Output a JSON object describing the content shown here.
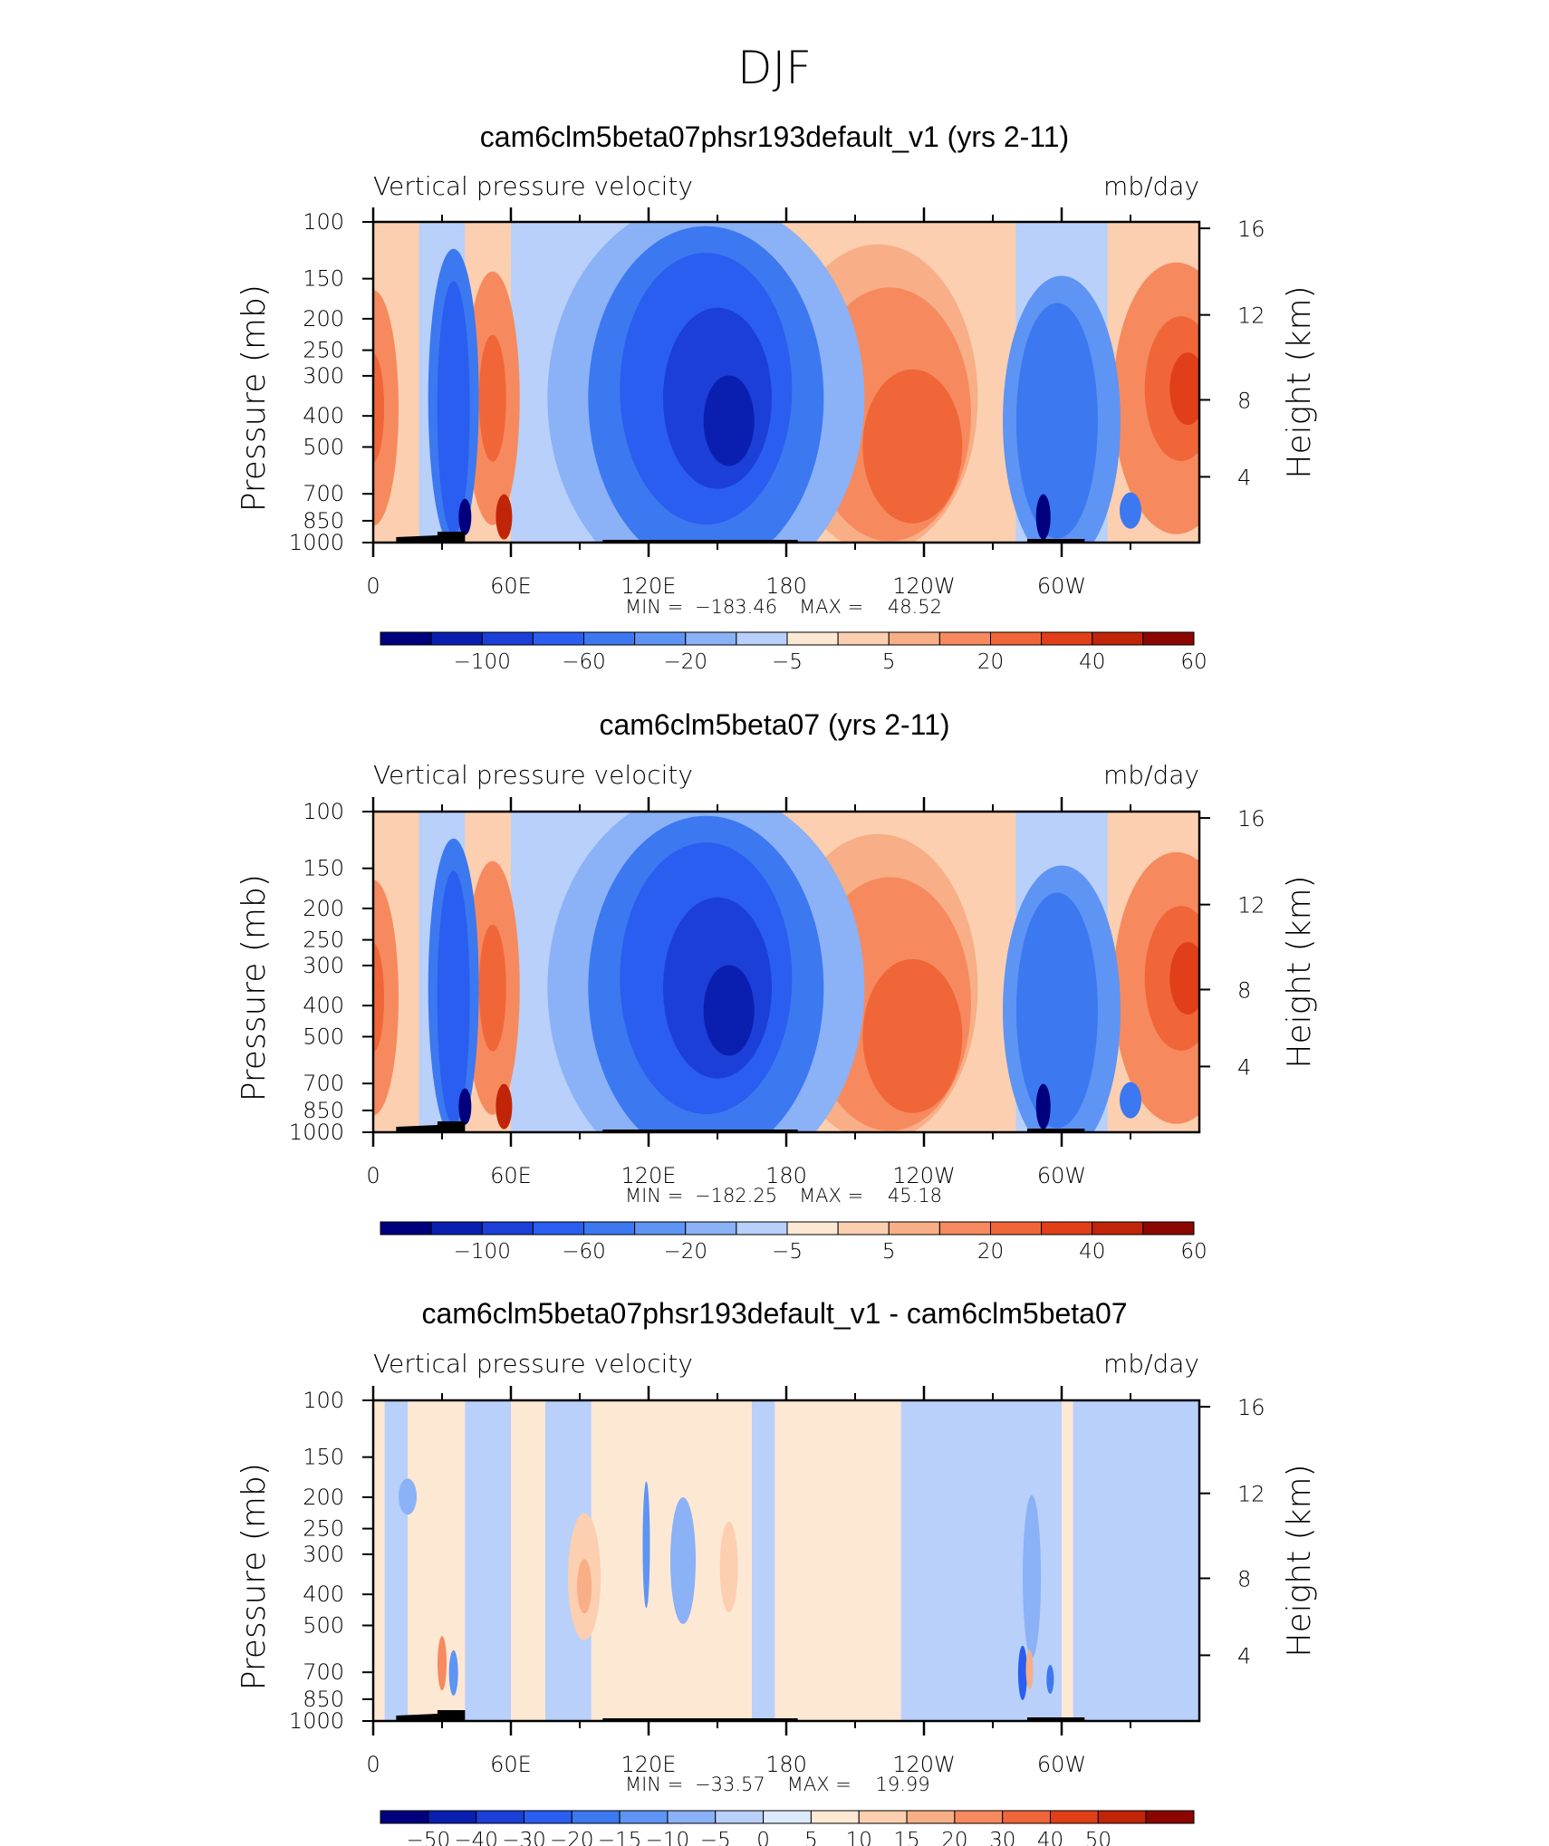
{
  "figure_title": "DJF",
  "chart_data": [
    {
      "type": "heatmap",
      "title": "cam6clm5beta07phsr193default_v1 (yrs 2-11)",
      "subtitle_left": "Vertical pressure velocity",
      "subtitle_right": "mb/day",
      "ylabel": "Pressure (mb)",
      "y2label": "Height (km)",
      "x_ticks": [
        "0",
        "60E",
        "120E",
        "180",
        "120W",
        "60W"
      ],
      "y_ticks": [
        "100",
        "150",
        "200",
        "250",
        "300",
        "400",
        "500",
        "700",
        "850",
        "1000"
      ],
      "y2_ticks": [
        "16",
        "12",
        "8",
        "4"
      ],
      "min_label": "MIN",
      "max_label": "MAX",
      "min": "−183.46",
      "max": "48.52",
      "colorbar_labels": [
        "−100",
        "−60",
        "−20",
        "−5",
        "5",
        "20",
        "40",
        "60"
      ],
      "levels": [
        -120,
        -100,
        -80,
        -60,
        -40,
        -20,
        -10,
        -5,
        0,
        5,
        10,
        20,
        30,
        40,
        50,
        60
      ],
      "features": [
        {
          "lon": 0,
          "p": 400,
          "value": 30
        },
        {
          "lon": 35,
          "p": 400,
          "value": -60
        },
        {
          "lon": 52,
          "p": 350,
          "value": 35
        },
        {
          "lon": 140,
          "p": 380,
          "value": -90
        },
        {
          "lon": 225,
          "p": 500,
          "value": 30
        },
        {
          "lon": 300,
          "p": 400,
          "value": -45
        },
        {
          "lon": 350,
          "p": 330,
          "value": 40
        }
      ]
    },
    {
      "type": "heatmap",
      "title": "cam6clm5beta07 (yrs 2-11)",
      "subtitle_left": "Vertical pressure velocity",
      "subtitle_right": "mb/day",
      "ylabel": "Pressure (mb)",
      "y2label": "Height (km)",
      "x_ticks": [
        "0",
        "60E",
        "120E",
        "180",
        "120W",
        "60W"
      ],
      "y_ticks": [
        "100",
        "150",
        "200",
        "250",
        "300",
        "400",
        "500",
        "700",
        "850",
        "1000"
      ],
      "y2_ticks": [
        "16",
        "12",
        "8",
        "4"
      ],
      "min_label": "MIN",
      "max_label": "MAX",
      "min": "−182.25",
      "max": "45.18",
      "colorbar_labels": [
        "−100",
        "−60",
        "−20",
        "−5",
        "5",
        "20",
        "40",
        "60"
      ],
      "levels": [
        -120,
        -100,
        -80,
        -60,
        -40,
        -20,
        -10,
        -5,
        0,
        5,
        10,
        20,
        30,
        40,
        50,
        60
      ],
      "features": [
        {
          "lon": 0,
          "p": 400,
          "value": 30
        },
        {
          "lon": 35,
          "p": 400,
          "value": -60
        },
        {
          "lon": 52,
          "p": 350,
          "value": 35
        },
        {
          "lon": 140,
          "p": 380,
          "value": -88
        },
        {
          "lon": 225,
          "p": 500,
          "value": 28
        },
        {
          "lon": 300,
          "p": 400,
          "value": -45
        },
        {
          "lon": 350,
          "p": 330,
          "value": 38
        }
      ]
    },
    {
      "type": "heatmap",
      "title": "cam6clm5beta07phsr193default_v1 - cam6clm5beta07",
      "subtitle_left": "Vertical pressure velocity",
      "subtitle_right": "mb/day",
      "ylabel": "Pressure (mb)",
      "y2label": "Height (km)",
      "x_ticks": [
        "0",
        "60E",
        "120E",
        "180",
        "120W",
        "60W"
      ],
      "y_ticks": [
        "100",
        "150",
        "200",
        "250",
        "300",
        "400",
        "500",
        "700",
        "850",
        "1000"
      ],
      "y2_ticks": [
        "16",
        "12",
        "8",
        "4"
      ],
      "min_label": "MIN",
      "max_label": "MAX",
      "min": "−33.57",
      "max": "19.99",
      "colorbar_labels": [
        "−50",
        "−40",
        "−30",
        "−20",
        "−15",
        "−10",
        "−5",
        "0",
        "5",
        "10",
        "15",
        "20",
        "30",
        "40",
        "50"
      ],
      "levels": [
        -60,
        -50,
        -40,
        -30,
        -20,
        -15,
        -10,
        -5,
        0,
        5,
        10,
        15,
        20,
        30,
        40,
        50,
        60
      ],
      "features": [
        {
          "lon": 30,
          "p": 750,
          "value": 15
        },
        {
          "lon": 117,
          "p": 300,
          "value": -10
        },
        {
          "lon": 90,
          "p": 350,
          "value": 6
        },
        {
          "lon": 283,
          "p": 700,
          "value": -30
        },
        {
          "lon": 286,
          "p": 750,
          "value": 18
        }
      ]
    }
  ],
  "colors": {
    "cold": [
      "#00007f",
      "#0a1fb0",
      "#1c3fd8",
      "#2a5ef0",
      "#3c78f0",
      "#5e94f4",
      "#8bb1f6",
      "#b8d0fa",
      "#dceafd"
    ],
    "warm": [
      "#fde8d4",
      "#fbcfb0",
      "#f8ae86",
      "#f68a5e",
      "#f06638",
      "#e03f17",
      "#c02508",
      "#8c0600"
    ],
    "terrain": "#000000"
  }
}
